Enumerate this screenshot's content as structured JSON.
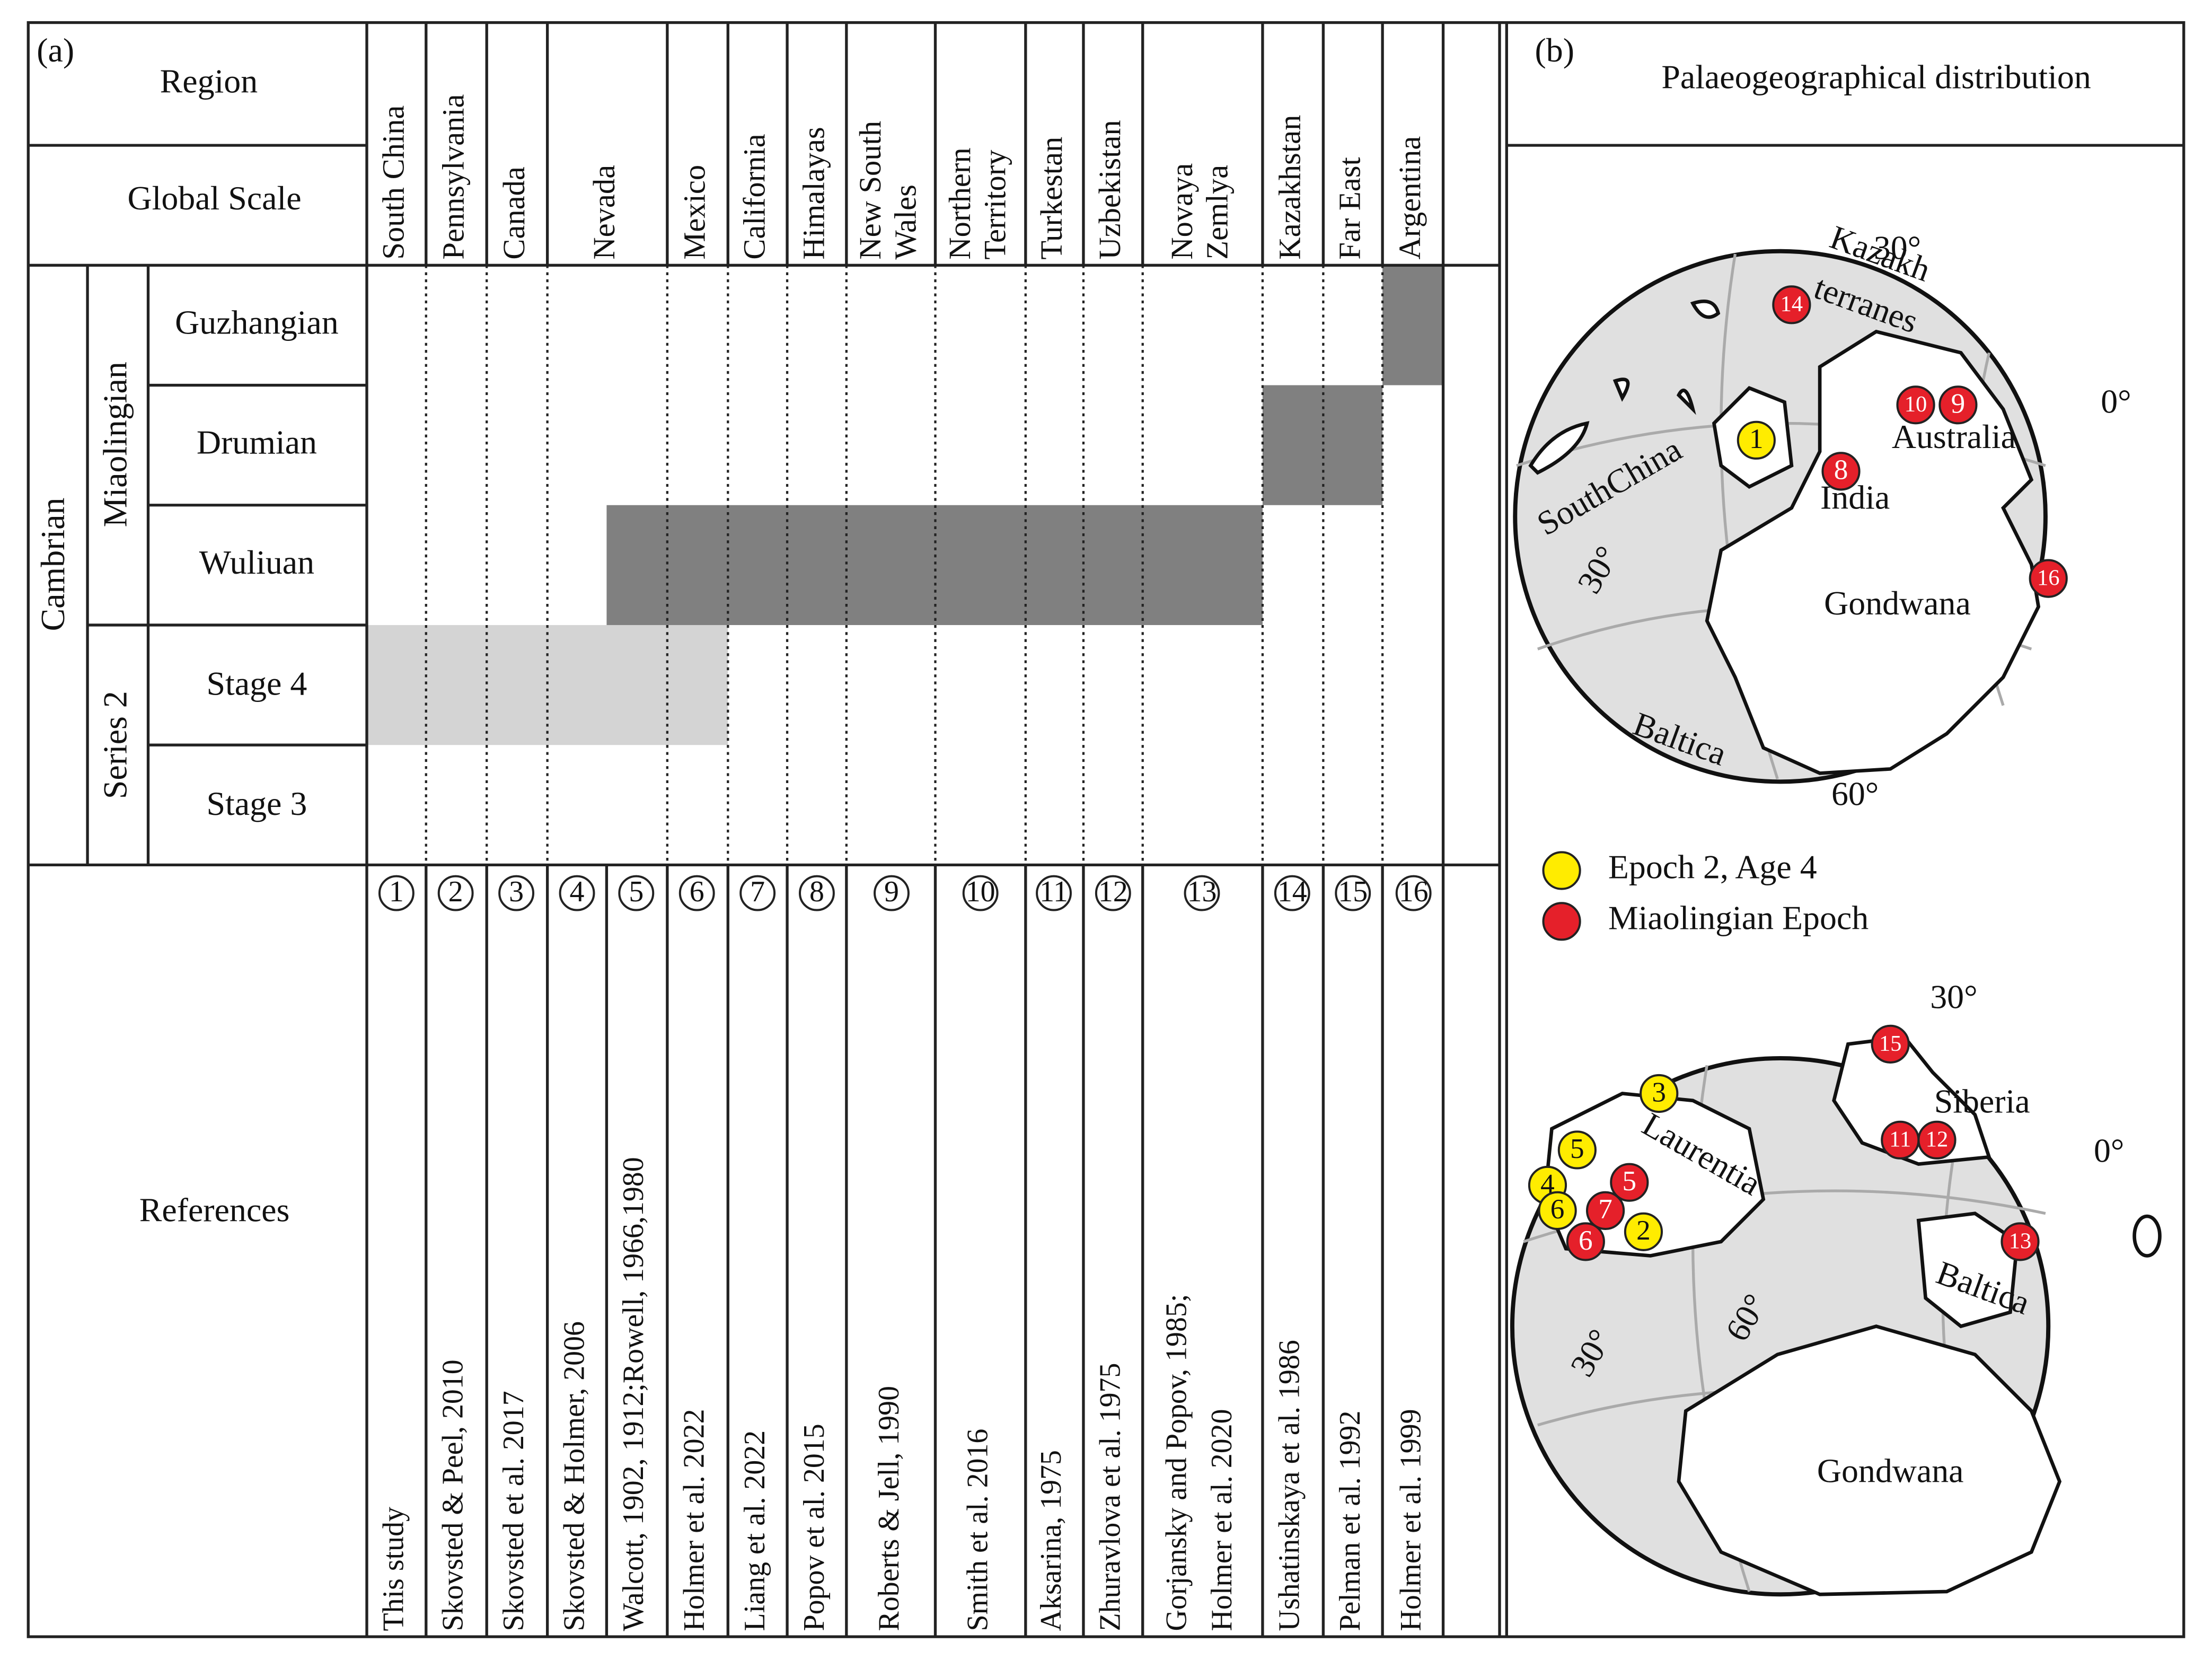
{
  "panel_a": {
    "label": "(a)",
    "region_label": "Region",
    "global_scale_label": "Global Scale",
    "system": "Cambrian",
    "series": [
      "Miaolingian",
      "Series 2"
    ],
    "stages": [
      "Guzhangian",
      "Drumian",
      "Wuliuan",
      "Stage 4",
      "Stage 3"
    ],
    "references_label": "References",
    "regions": [
      [
        "South China"
      ],
      [
        "Pennsylvania"
      ],
      [
        "Canada"
      ],
      [
        "Nevada"
      ],
      [
        "Mexico"
      ],
      [
        "California"
      ],
      [
        "Himalayas"
      ],
      [
        "New South",
        "Wales"
      ],
      [
        "Northern",
        "Territory"
      ],
      [
        "Turkestan"
      ],
      [
        "Uzbekistan"
      ],
      [
        "Novaya",
        "Zemlya"
      ],
      [
        "Kazakhstan"
      ],
      [
        "Far East"
      ],
      [
        "Argentina"
      ]
    ],
    "references": [
      {
        "number": "1",
        "lines": [
          "This study"
        ]
      },
      {
        "number": "2",
        "lines": [
          "Skovsted & Peel, 2010"
        ]
      },
      {
        "number": "3",
        "lines": [
          "Skovsted et al. 2017"
        ]
      },
      {
        "number": "4",
        "lines": [
          "Skovsted & Holmer, 2006"
        ]
      },
      {
        "number": "5",
        "lines": [
          "Walcott, 1902, 1912;Rowell, 1966,1980"
        ]
      },
      {
        "number": "6",
        "lines": [
          "Holmer et al. 2022"
        ]
      },
      {
        "number": "7",
        "lines": [
          "Liang et al. 2022"
        ]
      },
      {
        "number": "8",
        "lines": [
          "Popov et al. 2015"
        ]
      },
      {
        "number": "9",
        "lines": [
          "Roberts & Jell, 1990"
        ]
      },
      {
        "number": "10",
        "lines": [
          "Smith et al. 2016"
        ]
      },
      {
        "number": "11",
        "lines": [
          "Aksarina, 1975"
        ]
      },
      {
        "number": "12",
        "lines": [
          "Zhuravlova et al. 1975"
        ]
      },
      {
        "number": "13",
        "lines": [
          "Gorjansky and Popov, 1985;",
          "Holmer et al. 2020"
        ]
      },
      {
        "number": "14",
        "lines": [
          "Ushatinskaya et al. 1986"
        ]
      },
      {
        "number": "15",
        "lines": [
          "Pelman et al. 1992"
        ]
      },
      {
        "number": "16",
        "lines": [
          "Holmer et al. 1999"
        ]
      }
    ]
  },
  "panel_b": {
    "label": "(b)",
    "title": "Palaeogeographical distribution",
    "legend": [
      {
        "label": "Epoch 2, Age 4",
        "color": "#ffec00"
      },
      {
        "label": "Miaolingian Epoch",
        "color": "#e5202a"
      }
    ],
    "globes": [
      {
        "labels": [
          "Kazakh",
          "terranes",
          "30°",
          "0°",
          "Australia",
          "SouthChina",
          "India",
          "30°",
          "Gondwana",
          "Baltica",
          "60°"
        ],
        "points": [
          {
            "label": "14",
            "group": 1
          },
          {
            "label": "10",
            "group": 1
          },
          {
            "label": "9",
            "group": 1
          },
          {
            "label": "1",
            "group": 0
          },
          {
            "label": "8",
            "group": 1
          },
          {
            "label": "16",
            "group": 1
          }
        ]
      },
      {
        "labels": [
          "30°",
          "Siberia",
          "Laurentia",
          "0°",
          "Baltica",
          "30°",
          "60°",
          "Gondwana"
        ],
        "points": [
          {
            "label": "15",
            "group": 1
          },
          {
            "label": "3",
            "group": 0
          },
          {
            "label": "5",
            "group": 0
          },
          {
            "label": "4",
            "group": 0
          },
          {
            "label": "5",
            "group": 1
          },
          {
            "label": "6",
            "group": 0
          },
          {
            "label": "7",
            "group": 1
          },
          {
            "label": "6",
            "group": 1
          },
          {
            "label": "2",
            "group": 0
          },
          {
            "label": "11",
            "group": 1
          },
          {
            "label": "12",
            "group": 1
          },
          {
            "label": "13",
            "group": 1
          }
        ]
      }
    ]
  }
}
